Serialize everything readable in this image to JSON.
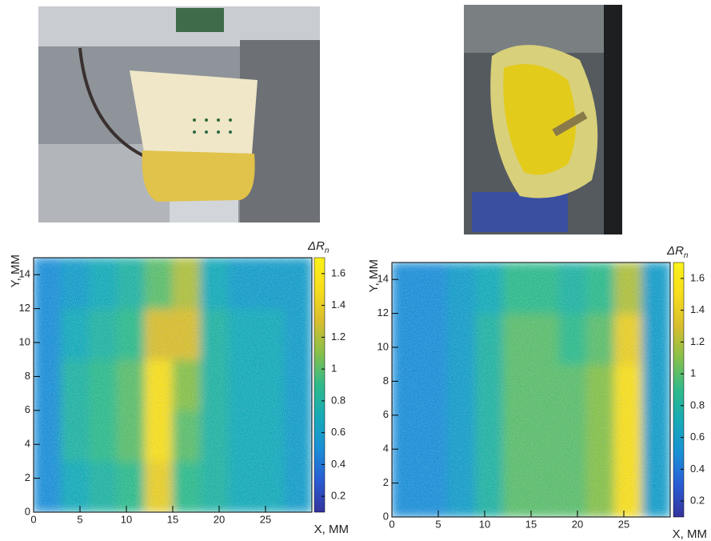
{
  "chart_data": [
    {
      "type": "heatmap",
      "x_label": "X, MM",
      "y_label": "Y, MM",
      "z_label": "ΔR",
      "z_label_sub": "n",
      "xlim": [
        0,
        30
      ],
      "ylim": [
        0,
        15
      ],
      "zlim": [
        0.1,
        1.7
      ],
      "xticks": [
        0,
        5,
        10,
        15,
        20,
        25
      ],
      "yticks": [
        0,
        2,
        4,
        6,
        8,
        10,
        12,
        14
      ],
      "zticks": [
        0.2,
        0.4,
        0.6,
        0.8,
        1,
        1.2,
        1.4,
        1.6
      ],
      "colormap": [
        "#35339c",
        "#2a5cd4",
        "#1a8fd6",
        "#17aab8",
        "#2fba8a",
        "#86c04a",
        "#d8bd2e",
        "#f6dd1c",
        "#fbf21a"
      ],
      "xbins": [
        0,
        3,
        6,
        9,
        12,
        15,
        18,
        21,
        24,
        27,
        30
      ],
      "ybins": [
        0,
        3,
        6,
        9,
        12,
        15
      ],
      "z": [
        [
          0.5,
          0.7,
          0.8,
          0.9,
          1.4,
          0.9,
          0.8,
          0.7,
          0.7,
          0.6
        ],
        [
          0.5,
          0.8,
          0.9,
          1.0,
          1.5,
          1.0,
          0.8,
          0.7,
          0.7,
          0.6
        ],
        [
          0.5,
          0.8,
          0.9,
          1.0,
          1.5,
          1.1,
          0.8,
          0.7,
          0.7,
          0.6
        ],
        [
          0.5,
          0.7,
          0.8,
          0.9,
          1.3,
          1.3,
          0.8,
          0.7,
          0.7,
          0.6
        ],
        [
          0.5,
          0.6,
          0.7,
          0.8,
          1.0,
          1.2,
          0.7,
          0.6,
          0.6,
          0.6
        ]
      ]
    },
    {
      "type": "heatmap",
      "x_label": "X, MM",
      "y_label": "Y, MM",
      "z_label": "ΔR",
      "z_label_sub": "n",
      "xlim": [
        0,
        30
      ],
      "ylim": [
        0,
        15
      ],
      "zlim": [
        0.1,
        1.7
      ],
      "xticks": [
        0,
        5,
        10,
        15,
        20,
        25
      ],
      "yticks": [
        0,
        2,
        4,
        6,
        8,
        10,
        12,
        14
      ],
      "zticks": [
        0.2,
        0.4,
        0.6,
        0.8,
        1,
        1.2,
        1.4,
        1.6
      ],
      "colormap": [
        "#35339c",
        "#2a5cd4",
        "#1a8fd6",
        "#17aab8",
        "#2fba8a",
        "#86c04a",
        "#d8bd2e",
        "#f6dd1c",
        "#fbf21a"
      ],
      "xbins": [
        0,
        3,
        6,
        9,
        12,
        15,
        18,
        21,
        24,
        27,
        30
      ],
      "ybins": [
        0,
        3,
        6,
        9,
        12,
        15
      ],
      "z": [
        [
          0.5,
          0.5,
          0.6,
          0.8,
          1.0,
          1.0,
          1.0,
          1.1,
          1.5,
          0.6
        ],
        [
          0.5,
          0.5,
          0.6,
          0.8,
          1.0,
          1.0,
          1.0,
          1.1,
          1.5,
          0.6
        ],
        [
          0.5,
          0.5,
          0.6,
          0.8,
          1.0,
          1.0,
          1.0,
          1.1,
          1.5,
          0.6
        ],
        [
          0.5,
          0.5,
          0.6,
          0.8,
          1.0,
          1.0,
          0.9,
          1.0,
          1.4,
          0.6
        ],
        [
          0.5,
          0.5,
          0.6,
          0.7,
          0.9,
          0.9,
          0.8,
          0.9,
          1.2,
          0.6
        ]
      ]
    }
  ]
}
